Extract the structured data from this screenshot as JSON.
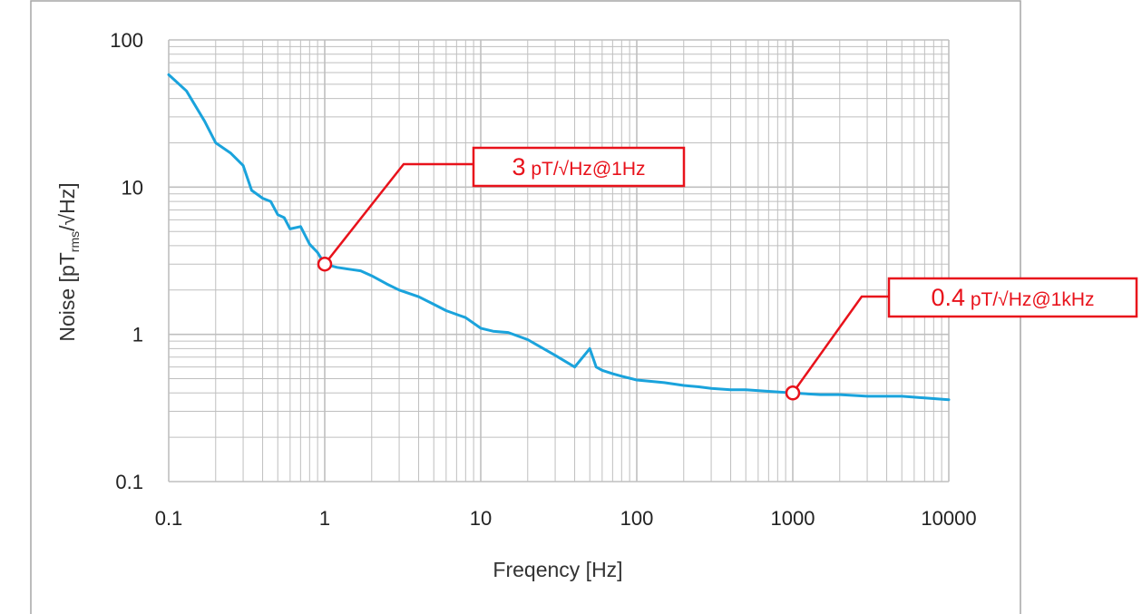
{
  "colors": {
    "series": "#1aa3dc",
    "annotation": "#e8121b",
    "grid": "#bfbfbf",
    "frame": "#a6a6a6",
    "text": "#222222"
  },
  "chart_data": {
    "type": "line",
    "title": "",
    "xlabel": "Freqency [Hz]",
    "ylabel_main": "Noise [pT",
    "ylabel_sub": "rms",
    "ylabel_tail": "/√Hz]",
    "x_scale": "log",
    "y_scale": "log",
    "xlim": [
      0.1,
      10000
    ],
    "ylim": [
      0.1,
      100
    ],
    "x_ticks": [
      0.1,
      1,
      10,
      100,
      1000,
      10000
    ],
    "x_tick_labels": [
      "0.1",
      "1",
      "10",
      "100",
      "1000",
      "10000"
    ],
    "y_ticks": [
      0.1,
      1,
      10,
      100
    ],
    "y_tick_labels": [
      "0.1",
      "1",
      "10",
      "100"
    ],
    "grid": {
      "major": true,
      "minor": true
    },
    "legend": "none",
    "series": [
      {
        "x": [
          0.1,
          0.13,
          0.17,
          0.2,
          0.25,
          0.3,
          0.34,
          0.4,
          0.45,
          0.5,
          0.55,
          0.6,
          0.7,
          0.8,
          0.9,
          1.0,
          1.2,
          1.5,
          1.7,
          2.0,
          2.5,
          3.0,
          4.0,
          5.0,
          6.0,
          8.0,
          10.0,
          12.0,
          15.0,
          20.0,
          30.0,
          40.0,
          50.0,
          55.0,
          60.0,
          70.0,
          80.0,
          100.0,
          150.0,
          200.0,
          250.0,
          300.0,
          400.0,
          500.0,
          700.0,
          1000.0,
          1500.0,
          2000.0,
          3000.0,
          5000.0,
          7000.0,
          10000.0
        ],
        "y": [
          58,
          45,
          28,
          20,
          17,
          14,
          9.5,
          8.4,
          8.0,
          6.5,
          6.2,
          5.2,
          5.4,
          4.1,
          3.6,
          3.0,
          2.85,
          2.75,
          2.7,
          2.5,
          2.2,
          2.0,
          1.8,
          1.6,
          1.45,
          1.3,
          1.1,
          1.05,
          1.03,
          0.92,
          0.72,
          0.6,
          0.8,
          0.6,
          0.57,
          0.54,
          0.52,
          0.49,
          0.47,
          0.45,
          0.44,
          0.43,
          0.42,
          0.42,
          0.41,
          0.4,
          0.39,
          0.39,
          0.38,
          0.38,
          0.37,
          0.36
        ]
      }
    ],
    "annotations": [
      {
        "x": 1,
        "y": 3,
        "value": "3",
        "unit": " pT/√Hz@1Hz"
      },
      {
        "x": 1000,
        "y": 0.4,
        "value": "0.4",
        "unit": " pT/√Hz@1kHz"
      }
    ]
  }
}
